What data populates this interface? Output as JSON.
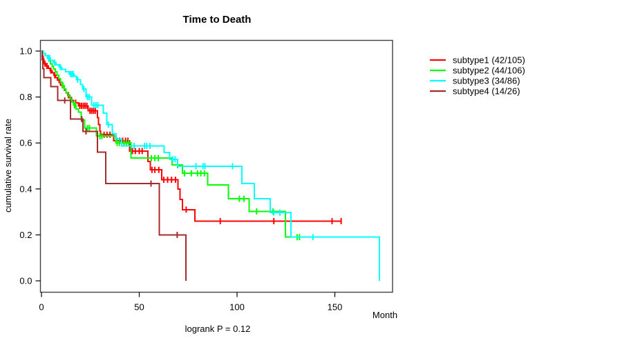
{
  "title": "Time to Death",
  "annotation": "logrank P = 0.12",
  "axes": {
    "x": {
      "label": "Month",
      "ticks": [
        {
          "value": 0,
          "label": "0"
        },
        {
          "value": 50,
          "label": "50"
        },
        {
          "value": 100,
          "label": "100"
        },
        {
          "value": 150,
          "label": "150"
        }
      ],
      "range": [
        0,
        179.5
      ]
    },
    "y": {
      "label": "cumulative survival rate",
      "ticks": [
        {
          "value": 0.0,
          "label": "0.0"
        },
        {
          "value": 0.2,
          "label": "0.2"
        },
        {
          "value": 0.4,
          "label": "0.4"
        },
        {
          "value": 0.6,
          "label": "0.6"
        },
        {
          "value": 0.8,
          "label": "0.8"
        },
        {
          "value": 1.0,
          "label": "1.0"
        }
      ],
      "range": [
        0,
        1
      ]
    }
  },
  "colors": {
    "frame": "#3f3f3f",
    "text": "#000000"
  },
  "chart_data": {
    "type": "line",
    "subtype": "kaplan-meier-step",
    "title": "Time to Death",
    "xlabel": "Month",
    "ylabel": "cumulative survival rate",
    "annotation": "logrank P = 0.12",
    "xlim": [
      0,
      179.5
    ],
    "ylim": [
      0,
      1
    ],
    "grid": false,
    "legend_position": "right-outside",
    "censor_marker": "vertical-tick",
    "series": [
      {
        "name": "subtype1",
        "label": "subtype1 (42/105)",
        "events": 42,
        "n": 105,
        "color": "#ff0000",
        "drops_to_zero": false,
        "end_month": 153.5,
        "steps": [
          [
            0.3,
            0.99
          ],
          [
            0.6,
            0.978
          ],
          [
            0.9,
            0.966
          ],
          [
            1.2,
            0.955
          ],
          [
            1.5,
            0.945
          ],
          [
            2.5,
            0.935
          ],
          [
            3.5,
            0.925
          ],
          [
            4.5,
            0.915
          ],
          [
            5.5,
            0.905
          ],
          [
            6.3,
            0.895
          ],
          [
            7.2,
            0.885
          ],
          [
            8.1,
            0.874
          ],
          [
            9,
            0.863
          ],
          [
            9.8,
            0.852
          ],
          [
            10.7,
            0.841
          ],
          [
            11.6,
            0.83
          ],
          [
            12.5,
            0.819
          ],
          [
            13.4,
            0.808
          ],
          [
            14.3,
            0.797
          ],
          [
            15.4,
            0.786
          ],
          [
            16.5,
            0.775
          ],
          [
            18.9,
            0.762
          ],
          [
            23.9,
            0.74
          ],
          [
            28.7,
            0.71
          ],
          [
            29.2,
            0.68
          ],
          [
            29.8,
            0.652
          ],
          [
            30.3,
            0.636
          ],
          [
            36.9,
            0.61
          ],
          [
            45,
            0.565
          ],
          [
            54.5,
            0.52
          ],
          [
            55.6,
            0.483
          ],
          [
            61.5,
            0.44
          ],
          [
            69.7,
            0.4
          ],
          [
            70.9,
            0.355
          ],
          [
            72,
            0.31
          ],
          [
            78.5,
            0.26
          ]
        ],
        "censors": [
          [
            1.8,
            0.945
          ],
          [
            2.8,
            0.935
          ],
          [
            4.8,
            0.915
          ],
          [
            6.8,
            0.895
          ],
          [
            13.8,
            0.808
          ],
          [
            17.5,
            0.775
          ],
          [
            19.6,
            0.762
          ],
          [
            20.5,
            0.762
          ],
          [
            21.4,
            0.762
          ],
          [
            22.3,
            0.762
          ],
          [
            23.2,
            0.762
          ],
          [
            24.8,
            0.74
          ],
          [
            25.7,
            0.74
          ],
          [
            26.6,
            0.74
          ],
          [
            27.5,
            0.74
          ],
          [
            32,
            0.636
          ],
          [
            33.5,
            0.636
          ],
          [
            35,
            0.636
          ],
          [
            38.5,
            0.61
          ],
          [
            40,
            0.61
          ],
          [
            41.5,
            0.61
          ],
          [
            43,
            0.61
          ],
          [
            44.2,
            0.61
          ],
          [
            46.5,
            0.565
          ],
          [
            48,
            0.565
          ],
          [
            50,
            0.565
          ],
          [
            51.5,
            0.565
          ],
          [
            56.5,
            0.483
          ],
          [
            58,
            0.483
          ],
          [
            60,
            0.483
          ],
          [
            62.5,
            0.44
          ],
          [
            64.5,
            0.44
          ],
          [
            66.5,
            0.44
          ],
          [
            68.5,
            0.44
          ],
          [
            74,
            0.31
          ],
          [
            91.4,
            0.26
          ],
          [
            118.8,
            0.26
          ],
          [
            148.6,
            0.26
          ],
          [
            153.2,
            0.26
          ]
        ]
      },
      {
        "name": "subtype2",
        "label": "subtype2 (44/106)",
        "events": 44,
        "n": 106,
        "color": "#00ff00",
        "drops_to_zero": false,
        "end_month": 132.5,
        "steps": [
          [
            1,
            0.99
          ],
          [
            2,
            0.98
          ],
          [
            3,
            0.968
          ],
          [
            3.8,
            0.956
          ],
          [
            4.6,
            0.945
          ],
          [
            5.4,
            0.934
          ],
          [
            6.2,
            0.922
          ],
          [
            7.1,
            0.91
          ],
          [
            7.9,
            0.895
          ],
          [
            8.8,
            0.88
          ],
          [
            9.7,
            0.865
          ],
          [
            10.6,
            0.85
          ],
          [
            11.6,
            0.835
          ],
          [
            12.6,
            0.82
          ],
          [
            13.6,
            0.805
          ],
          [
            14.6,
            0.792
          ],
          [
            15.5,
            0.778
          ],
          [
            16.5,
            0.764
          ],
          [
            17.7,
            0.748
          ],
          [
            18.9,
            0.734
          ],
          [
            20.3,
            0.7
          ],
          [
            22.1,
            0.665
          ],
          [
            28.1,
            0.63
          ],
          [
            37.9,
            0.6
          ],
          [
            45.7,
            0.534
          ],
          [
            66.8,
            0.504
          ],
          [
            72,
            0.468
          ],
          [
            84.9,
            0.418
          ],
          [
            95.5,
            0.357
          ],
          [
            106.1,
            0.302
          ],
          [
            124.8,
            0.19
          ]
        ],
        "censors": [
          [
            11,
            0.85
          ],
          [
            16.9,
            0.764
          ],
          [
            17.4,
            0.764
          ],
          [
            23.5,
            0.665
          ],
          [
            24.5,
            0.665
          ],
          [
            29.9,
            0.63
          ],
          [
            30.9,
            0.63
          ],
          [
            38.7,
            0.6
          ],
          [
            39.8,
            0.6
          ],
          [
            41,
            0.6
          ],
          [
            42.2,
            0.6
          ],
          [
            43.4,
            0.6
          ],
          [
            44.6,
            0.6
          ],
          [
            56.2,
            0.534
          ],
          [
            58,
            0.534
          ],
          [
            59.7,
            0.534
          ],
          [
            69.6,
            0.504
          ],
          [
            73.1,
            0.468
          ],
          [
            76.6,
            0.468
          ],
          [
            79.8,
            0.468
          ],
          [
            81.5,
            0.468
          ],
          [
            83.3,
            0.468
          ],
          [
            101.2,
            0.357
          ],
          [
            103.5,
            0.357
          ],
          [
            110,
            0.302
          ],
          [
            118.4,
            0.302
          ],
          [
            130.7,
            0.19
          ],
          [
            131.9,
            0.19
          ]
        ]
      },
      {
        "name": "subtype3",
        "label": "subtype3 (34/86)",
        "events": 34,
        "n": 86,
        "color": "#00ffff",
        "drops_to_zero": true,
        "end_month": 172.8,
        "steps": [
          [
            1,
            0.99
          ],
          [
            2.2,
            0.98
          ],
          [
            3,
            0.97
          ],
          [
            4.6,
            0.96
          ],
          [
            6,
            0.95
          ],
          [
            7.5,
            0.94
          ],
          [
            9,
            0.93
          ],
          [
            10.5,
            0.92
          ],
          [
            12.3,
            0.91
          ],
          [
            14.1,
            0.9
          ],
          [
            16.8,
            0.89
          ],
          [
            17.8,
            0.875
          ],
          [
            20,
            0.855
          ],
          [
            21.1,
            0.835
          ],
          [
            22.8,
            0.8
          ],
          [
            25.7,
            0.765
          ],
          [
            31.6,
            0.73
          ],
          [
            33.4,
            0.68
          ],
          [
            36.2,
            0.64
          ],
          [
            38.1,
            0.617
          ],
          [
            41,
            0.587
          ],
          [
            62.7,
            0.559
          ],
          [
            65.6,
            0.529
          ],
          [
            69.6,
            0.499
          ],
          [
            102.5,
            0.423
          ],
          [
            108.9,
            0.357
          ],
          [
            117,
            0.297
          ],
          [
            127.5,
            0.19
          ],
          [
            172.8,
            0
          ]
        ],
        "censors": [
          [
            3.6,
            0.97
          ],
          [
            4.2,
            0.97
          ],
          [
            6.8,
            0.95
          ],
          [
            9.7,
            0.93
          ],
          [
            14.8,
            0.9
          ],
          [
            15.6,
            0.9
          ],
          [
            16.3,
            0.9
          ],
          [
            18.5,
            0.875
          ],
          [
            21.7,
            0.835
          ],
          [
            23.5,
            0.8
          ],
          [
            24.4,
            0.8
          ],
          [
            26.8,
            0.765
          ],
          [
            27.8,
            0.765
          ],
          [
            28.8,
            0.765
          ],
          [
            34.2,
            0.68
          ],
          [
            47.4,
            0.587
          ],
          [
            52.7,
            0.587
          ],
          [
            53.8,
            0.587
          ],
          [
            55.5,
            0.587
          ],
          [
            67.1,
            0.529
          ],
          [
            68.3,
            0.529
          ],
          [
            79,
            0.499
          ],
          [
            82.6,
            0.499
          ],
          [
            83.6,
            0.499
          ],
          [
            97.7,
            0.499
          ],
          [
            118.8,
            0.297
          ],
          [
            121.9,
            0.297
          ],
          [
            138.8,
            0.19
          ]
        ]
      },
      {
        "name": "subtype4",
        "label": "subtype4 (14/26)",
        "events": 14,
        "n": 26,
        "color": "#a52a2a",
        "drops_to_zero": true,
        "end_month": 73.8,
        "steps": [
          [
            0.3,
            0.962
          ],
          [
            0.7,
            0.923
          ],
          [
            1.3,
            0.885
          ],
          [
            4.7,
            0.846
          ],
          [
            8.3,
            0.785
          ],
          [
            14.8,
            0.704
          ],
          [
            21.2,
            0.65
          ],
          [
            28.6,
            0.56
          ],
          [
            32.8,
            0.423
          ],
          [
            60.2,
            0.2
          ],
          [
            73.8,
            0
          ]
        ],
        "censors": [
          [
            11.9,
            0.785
          ],
          [
            20.6,
            0.704
          ],
          [
            22.8,
            0.65
          ],
          [
            56,
            0.423
          ],
          [
            69.4,
            0.2
          ]
        ]
      }
    ]
  }
}
